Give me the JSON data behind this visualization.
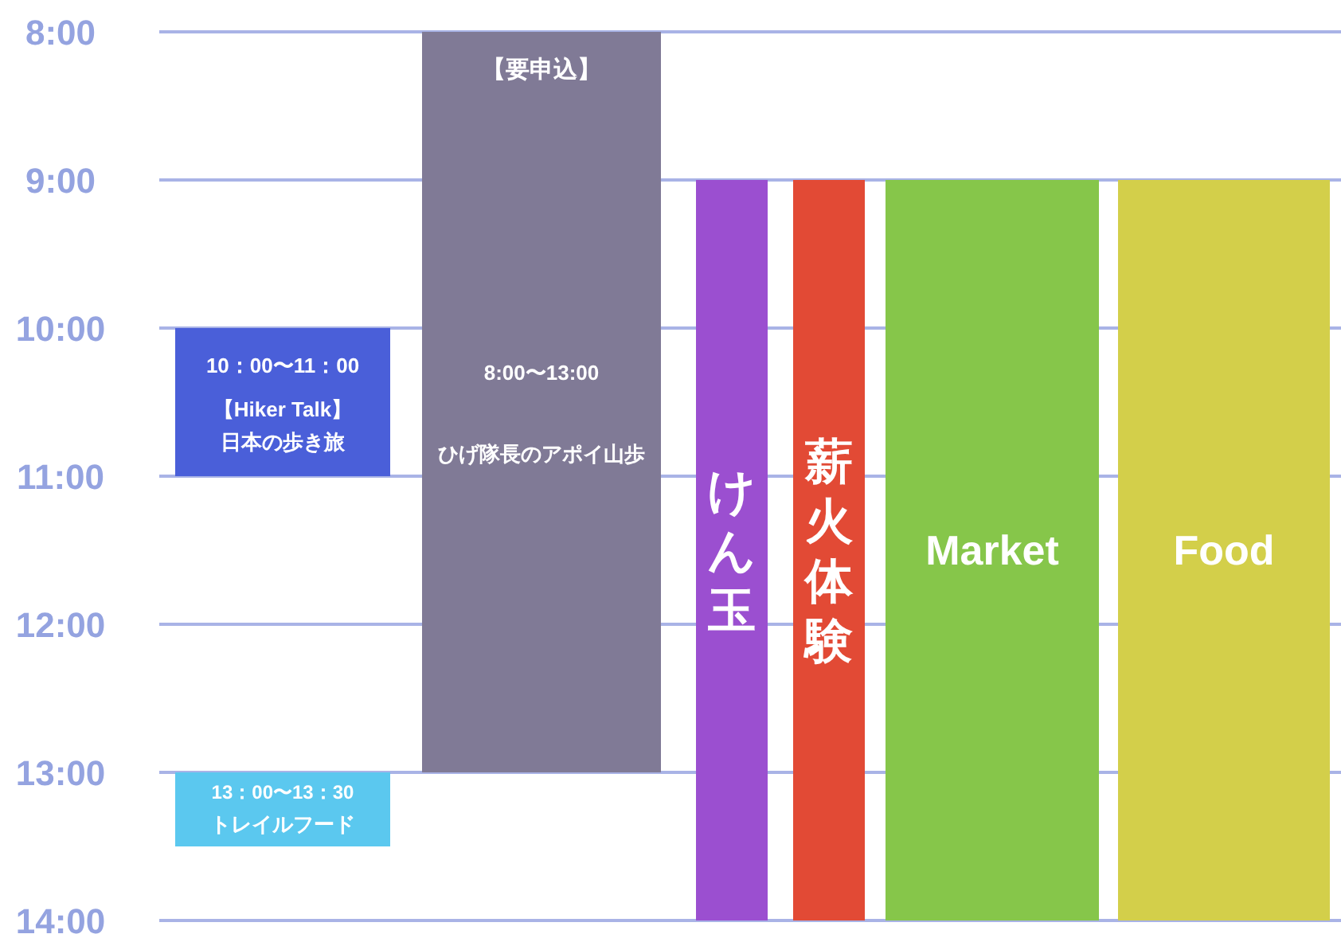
{
  "chart_data": {
    "type": "bar",
    "categories": [
      null,
      null,
      null,
      null,
      null,
      null
    ],
    "ylim": [
      14,
      8
    ],
    "yticks": [
      {
        "value": 8,
        "label": "8:00"
      },
      {
        "value": 9,
        "label": "9:00"
      },
      {
        "value": 10,
        "label": "10:00"
      },
      {
        "value": 11,
        "label": "11:00"
      },
      {
        "value": 12,
        "label": "12:00"
      },
      {
        "value": 13,
        "label": "13:00"
      },
      {
        "value": 14,
        "label": "14:00"
      }
    ],
    "grid": "y",
    "series": [
      {
        "base": [
          10,
          8,
          9,
          9,
          9,
          9
        ],
        "values": [
          1,
          5,
          5,
          5,
          5,
          5
        ],
        "colors": [
          "#4a5fd9",
          "#807a96",
          "#9b4fd0",
          "#e24a35",
          "#86c64a",
          "#d3cf4a"
        ]
      },
      {
        "base": [
          13,
          null,
          null,
          null,
          null,
          null
        ],
        "values": [
          0.5,
          null,
          null,
          null,
          null,
          null
        ],
        "colors": [
          "#5bc8ef",
          null,
          null,
          null,
          null,
          null
        ]
      }
    ],
    "annotations": [
      "10：00〜11：00",
      "【Hiker Talk】",
      "日本の歩き旅",
      "【要申込】",
      "8:00〜13:00",
      "ひげ隊長のアポイ山歩",
      "けん玉",
      "薪火体験",
      "Market",
      "Food",
      "13：00〜13：30",
      "トレイルフード"
    ]
  }
}
